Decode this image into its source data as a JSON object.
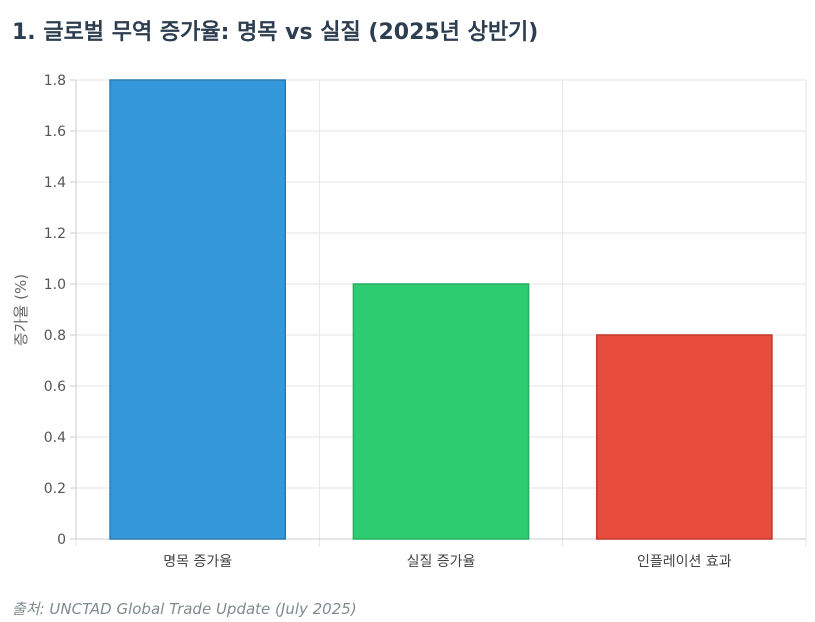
{
  "title": "1. 글로벌 무역 증가율: 명목 vs 실질 (2025년 상반기)",
  "source": "출처: UNCTAD Global Trade Update (July 2025)",
  "chart_data": {
    "type": "bar",
    "categories": [
      "명목 증가율",
      "실질 증가율",
      "인플레이션 효과"
    ],
    "values": [
      1.8,
      1.0,
      0.8
    ],
    "colors": [
      "#3498db",
      "#2ecc71",
      "#e74c3c"
    ],
    "border_colors": [
      "#2a7ab0",
      "#27ae60",
      "#c0392b"
    ],
    "ylabel": "증가율 (%)",
    "ylim": [
      0,
      1.8
    ],
    "yticks": [
      "0",
      "0.2",
      "0.4",
      "0.6",
      "0.8",
      "1.0",
      "1.2",
      "1.4",
      "1.6",
      "1.8"
    ],
    "grid": true,
    "legend": "none"
  }
}
